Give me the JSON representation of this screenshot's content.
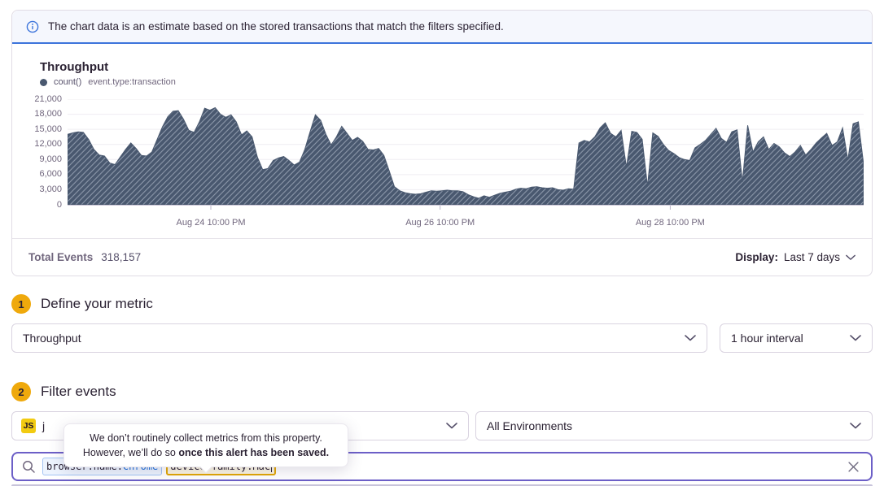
{
  "banner": {
    "text": "The chart data is an estimate based on the stored transactions that match the filters specified."
  },
  "chart_data": {
    "type": "area",
    "title": "Throughput",
    "legend": {
      "series": "count()",
      "filter": "event.type:transaction"
    },
    "ylim": [
      0,
      21000
    ],
    "grid": true,
    "y_ticks": [
      "21,000",
      "18,000",
      "15,000",
      "12,000",
      "9,000",
      "6,000",
      "3,000",
      "0"
    ],
    "x_ticks": [
      {
        "label": "Aug 24 10:00 PM",
        "pos": 0.18
      },
      {
        "label": "Aug 26 10:00 PM",
        "pos": 0.468
      },
      {
        "label": "Aug 28 10:00 PM",
        "pos": 0.757
      }
    ],
    "values": [
      14000,
      14300,
      14500,
      14400,
      13000,
      11000,
      9900,
      9700,
      8300,
      8000,
      9500,
      11000,
      12300,
      11200,
      9800,
      9700,
      10500,
      13000,
      15500,
      17500,
      18600,
      18700,
      17000,
      14800,
      14400,
      16500,
      19200,
      18800,
      19300,
      18000,
      17400,
      17900,
      16500,
      13900,
      14700,
      13500,
      9500,
      7000,
      7200,
      8800,
      9300,
      9600,
      8800,
      7900,
      8500,
      11000,
      14500,
      17900,
      16800,
      14000,
      11900,
      13500,
      15600,
      14200,
      12800,
      13400,
      12600,
      11000,
      10900,
      11200,
      9800,
      6800,
      3600,
      2800,
      2400,
      2200,
      2100,
      2200,
      2500,
      2800,
      2700,
      2800,
      2900,
      2800,
      2800,
      2600,
      2000,
      1600,
      1300,
      1800,
      1500,
      1900,
      2300,
      2500,
      2700,
      3100,
      3300,
      3200,
      3500,
      3600,
      3400,
      3300,
      3400,
      3000,
      2900,
      3200,
      3100,
      12300,
      12800,
      12500,
      13500,
      15300,
      16300,
      14200,
      13500,
      14800,
      7500,
      14600,
      14400,
      13000,
      3700,
      14300,
      13600,
      12000,
      10800,
      10200,
      9400,
      9000,
      8800,
      11300,
      12000,
      12800,
      14000,
      15200,
      13200,
      12400,
      14500,
      14900,
      4500,
      15800,
      10500,
      12500,
      13500,
      11000,
      12200,
      11500,
      10300,
      9600,
      10500,
      11800,
      9900,
      11000,
      12300,
      13300,
      14200,
      11800,
      12500,
      15300,
      8900,
      16100,
      16500,
      8000
    ]
  },
  "summary": {
    "total_events_label": "Total Events",
    "total_events_value": "318,157",
    "display_label": "Display:",
    "display_value": "Last 7 days"
  },
  "steps": {
    "metric": {
      "number": "1",
      "title": "Define your metric",
      "metric_value": "Throughput",
      "interval_value": "1 hour interval"
    },
    "filter": {
      "number": "2",
      "title": "Filter events",
      "project_badge": "JS",
      "project_name_visible": "j",
      "environment_value": "All Environments"
    }
  },
  "search": {
    "tokens": [
      {
        "key": "browser.name:",
        "value": "Chrome"
      },
      {
        "key": "device.family:",
        "value": "Mac"
      }
    ]
  },
  "tooltip": {
    "line1": "We don’t routinely collect metrics from this property.",
    "line2": "However, we’ll do so ",
    "line2_bold": "once this alert has been saved."
  },
  "colors": {
    "accent_purple": "#6C5FC7",
    "banner_blue": "#3C74DB",
    "chart_fill": "#49586F",
    "chart_hatch": "#8D99AB",
    "step_badge_yellow": "#EFA90C",
    "js_badge_yellow": "#F2CB11",
    "token_blue_border": "#A3C4F3",
    "token_blue_value": "#1E6FD9",
    "token_yellow_border": "#E2A604"
  }
}
